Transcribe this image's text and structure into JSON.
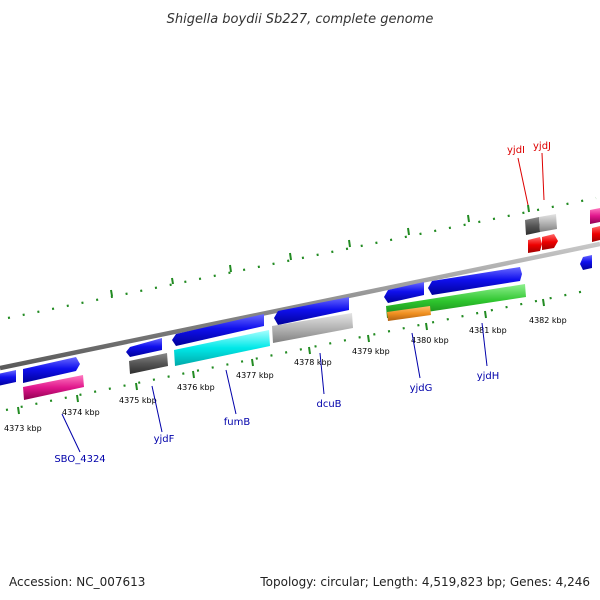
{
  "title": "Shigella boydii Sb227, complete genome",
  "footer": {
    "accession": "Accession: NC_007613",
    "stats": "Topology: circular; Length: 4,519,823 bp; Genes: 4,246"
  },
  "kbp_labels": [
    "4373 kbp",
    "4374 kbp",
    "4375 kbp",
    "4376 kbp",
    "4377 kbp",
    "4378 kbp",
    "4379 kbp",
    "4380 kbp",
    "4381 kbp",
    "4382 kbp"
  ],
  "gene_labels": [
    "SBO_4324",
    "yjdF",
    "fumB",
    "dcuB",
    "yjdG",
    "yjdH",
    "yjdI",
    "yjdJ"
  ],
  "colors": {
    "cds_forward": "#0000e0",
    "backbone": "#8c8c8c",
    "tick": "#228b22",
    "label_blue": "#0000aa",
    "label_red": "#dd0000",
    "magenta": "#e0168c",
    "dark_gray": "#555555",
    "light_gray": "#b4b4b4",
    "cyan": "#00e8e8",
    "green": "#2ec52e",
    "orange": "#f09020",
    "red": "#ee0000"
  }
}
